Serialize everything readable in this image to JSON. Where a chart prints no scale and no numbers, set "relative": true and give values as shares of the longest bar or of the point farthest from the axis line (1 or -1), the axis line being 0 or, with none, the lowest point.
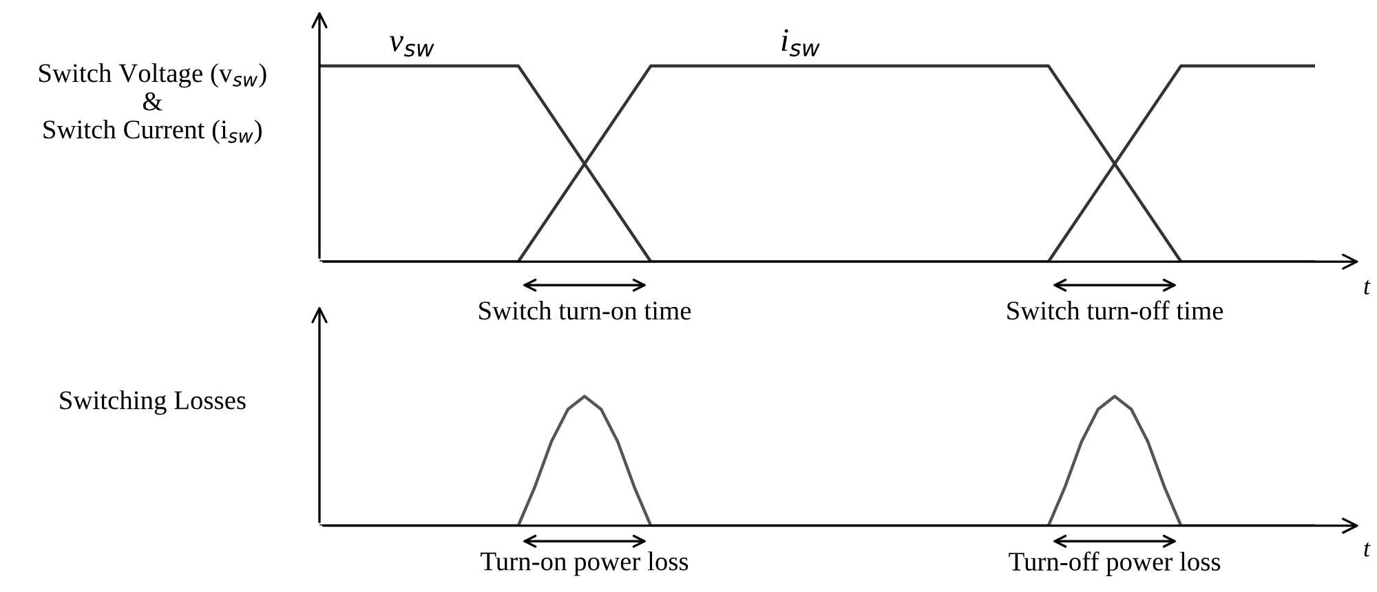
{
  "chart_data": [
    {
      "type": "line",
      "relative": true,
      "ylabel": "Switch Voltage (v$_{sw}$)\n&\nSwitch Current (i$_{sw}$)",
      "xlabel": "t",
      "categories": [
        null,
        null,
        null,
        null,
        null,
        null,
        null,
        null,
        null,
        null,
        null,
        null,
        null,
        null,
        null,
        null,
        null,
        null,
        null,
        null,
        null,
        null,
        null,
        null,
        null,
        null,
        null,
        null,
        null,
        null,
        null
      ],
      "series": [
        {
          "name": "v$_{sw}$",
          "color": "#333333",
          "values": [
            1,
            1,
            1,
            1,
            1,
            1,
            1,
            0.75,
            0.5,
            0.25,
            0,
            0,
            0,
            0,
            0,
            0,
            0,
            0,
            0,
            0,
            0,
            0,
            0,
            0.25,
            0.5,
            0.75,
            1,
            1,
            1,
            1,
            1
          ]
        },
        {
          "name": "i$_{sw}$",
          "color": "#333333",
          "values": [
            0,
            0,
            0,
            0,
            0,
            0,
            0,
            0.25,
            0.5,
            0.75,
            1,
            1,
            1,
            1,
            1,
            1,
            1,
            1,
            1,
            1,
            1,
            1,
            1,
            0.75,
            0.5,
            0.25,
            0,
            0,
            0,
            0,
            0
          ]
        }
      ],
      "annotations": [
        "Switch turn-on time",
        "Switch turn-off time"
      ]
    },
    {
      "type": "line",
      "relative": true,
      "ylabel": "Switching Losses",
      "xlabel": "t",
      "categories": [
        null,
        null,
        null,
        null,
        null,
        null,
        null,
        null,
        null,
        null,
        null,
        null,
        null,
        null,
        null,
        null,
        null,
        null,
        null,
        null,
        null,
        null,
        null,
        null,
        null,
        null,
        null,
        null,
        null,
        null,
        null,
        null,
        null,
        null,
        null,
        null,
        null,
        null,
        null,
        null,
        null,
        null,
        null,
        null,
        null,
        null,
        null,
        null,
        null,
        null,
        null,
        null,
        null,
        null,
        null,
        null,
        null,
        null,
        null,
        null,
        null
      ],
      "series": [
        {
          "color": "#555555",
          "values": [
            0,
            0,
            0,
            0,
            0,
            0,
            0,
            0,
            0,
            0,
            0,
            0,
            0,
            0.3,
            0.65,
            0.9,
            1,
            0.9,
            0.65,
            0.3,
            0,
            0,
            0,
            0,
            0,
            0,
            0,
            0,
            0,
            0,
            0,
            0,
            0,
            0,
            0,
            0,
            0,
            0,
            0,
            0,
            0,
            0,
            0,
            0,
            0,
            0.3,
            0.65,
            0.9,
            1,
            0.9,
            0.65,
            0.3,
            0,
            0,
            0,
            0,
            0,
            0,
            0,
            0,
            0
          ]
        }
      ],
      "annotations": [
        "Turn-on power loss",
        "Turn-off power loss"
      ]
    }
  ]
}
